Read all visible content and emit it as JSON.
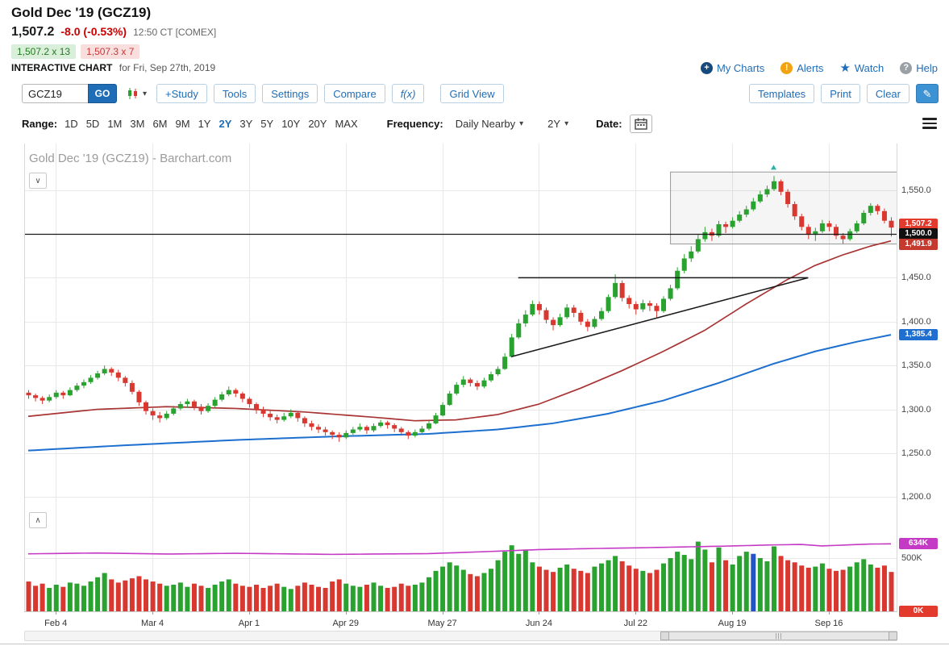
{
  "header": {
    "title": "Gold Dec '19 (GCZ19)",
    "last_price": "1,507.2",
    "change": "-8.0 (-0.53%)",
    "quote_time": "12:50 CT [COMEX]",
    "bid": "1,507.2 x 13",
    "ask": "1,507.3 x 7",
    "chart_label": "INTERACTIVE CHART",
    "chart_date": "for Fri, Sep 27th, 2019",
    "links": {
      "my_charts": "My Charts",
      "alerts": "Alerts",
      "watch": "Watch",
      "help": "Help"
    }
  },
  "toolbar": {
    "symbol_value": "GCZ19",
    "go_label": "GO",
    "buttons_left": [
      "+Study",
      "Tools",
      "Settings",
      "Compare",
      "f(x)",
      "Grid View"
    ],
    "buttons_right": [
      "Templates",
      "Print",
      "Clear"
    ]
  },
  "range_bar": {
    "range_label": "Range:",
    "ranges": [
      "1D",
      "5D",
      "1M",
      "3M",
      "6M",
      "9M",
      "1Y",
      "2Y",
      "3Y",
      "5Y",
      "10Y",
      "20Y",
      "MAX"
    ],
    "active_range": "2Y",
    "frequency_label": "Frequency:",
    "frequency_value": "Daily Nearby",
    "period_value": "2Y",
    "date_label": "Date:"
  },
  "icons": {
    "plus": "+",
    "alert": "!",
    "help": "?",
    "star": "★",
    "caret_down": "▾",
    "collapse_down": "∨",
    "collapse_up": "∧",
    "pencil": "✎",
    "grip": "|||"
  },
  "colors": {
    "up": "#2aa22f",
    "down": "#d93831",
    "ma_fast": "#a83434",
    "ma_slow": "#1c6fce",
    "open_interest": "#c53ac5",
    "drawn": "#1a1a1a",
    "grid": "#e8e8e8",
    "volume_highlight": "#2353c4",
    "marker": "#27b5ab",
    "badge_last": "#e23b2e",
    "badge_hline": "#111111",
    "badge_ma_fast": "#c43a2e",
    "badge_ma_slow": "#1e6fd0",
    "badge_open_interest": "#c53ac5",
    "badge_volume_zero": "#e23b2e",
    "accent": "#1f6db6",
    "change_negative": "#cc0000"
  },
  "chart_data": {
    "type": "candlestick",
    "watermark": "Gold Dec '19 (GCZ19) - Barchart.com",
    "panes": [
      "price_with_moving_averages",
      "volume_with_open_interest"
    ],
    "price_axis": {
      "domain": [
        1192,
        1603
      ],
      "ticks": [
        {
          "label": "1,550.0",
          "value": 1550
        },
        {
          "label": "1,500.0",
          "value": 1500
        },
        {
          "label": "1,450.0",
          "value": 1450
        },
        {
          "label": "1,400.0",
          "value": 1400
        },
        {
          "label": "1,350.0",
          "value": 1350
        },
        {
          "label": "1,300.0",
          "value": 1300
        },
        {
          "label": "1,250.0",
          "value": 1250
        },
        {
          "label": "1,200.0",
          "value": 1200
        }
      ]
    },
    "volume_axis": {
      "tick_label": "500K",
      "tick_value_k": 500
    },
    "x_labels": [
      {
        "label": "Feb 4",
        "i": 4
      },
      {
        "label": "Mar 4",
        "i": 18
      },
      {
        "label": "Apr 1",
        "i": 32
      },
      {
        "label": "Apr 29",
        "i": 46
      },
      {
        "label": "May 27",
        "i": 60
      },
      {
        "label": "Jun 24",
        "i": 74
      },
      {
        "label": "Jul 22",
        "i": 88
      },
      {
        "label": "Aug 19",
        "i": 102
      },
      {
        "label": "Sep 16",
        "i": 116
      }
    ],
    "candles": [
      [
        1319,
        1322,
        1312,
        1316
      ],
      [
        1316,
        1318,
        1309,
        1313
      ],
      [
        1313,
        1315,
        1306,
        1310
      ],
      [
        1310,
        1317,
        1308,
        1314
      ],
      [
        1314,
        1322,
        1312,
        1319
      ],
      [
        1319,
        1321,
        1312,
        1316
      ],
      [
        1316,
        1325,
        1315,
        1322
      ],
      [
        1322,
        1330,
        1320,
        1327
      ],
      [
        1327,
        1334,
        1324,
        1331
      ],
      [
        1331,
        1339,
        1329,
        1336
      ],
      [
        1336,
        1344,
        1334,
        1341
      ],
      [
        1341,
        1350,
        1339,
        1346
      ],
      [
        1346,
        1348,
        1338,
        1342
      ],
      [
        1342,
        1345,
        1332,
        1336
      ],
      [
        1336,
        1338,
        1326,
        1330
      ],
      [
        1330,
        1333,
        1317,
        1320
      ],
      [
        1320,
        1322,
        1304,
        1308
      ],
      [
        1308,
        1310,
        1294,
        1298
      ],
      [
        1298,
        1301,
        1288,
        1293
      ],
      [
        1293,
        1297,
        1285,
        1290
      ],
      [
        1290,
        1298,
        1288,
        1295
      ],
      [
        1295,
        1304,
        1293,
        1301
      ],
      [
        1301,
        1309,
        1299,
        1306
      ],
      [
        1306,
        1312,
        1302,
        1309
      ],
      [
        1309,
        1311,
        1299,
        1303
      ],
      [
        1303,
        1306,
        1294,
        1298
      ],
      [
        1298,
        1307,
        1296,
        1304
      ],
      [
        1304,
        1314,
        1302,
        1311
      ],
      [
        1311,
        1320,
        1309,
        1317
      ],
      [
        1317,
        1326,
        1315,
        1322
      ],
      [
        1322,
        1324,
        1314,
        1318
      ],
      [
        1318,
        1320,
        1308,
        1312
      ],
      [
        1312,
        1314,
        1302,
        1306
      ],
      [
        1306,
        1308,
        1295,
        1299
      ],
      [
        1299,
        1303,
        1291,
        1295
      ],
      [
        1295,
        1298,
        1287,
        1291
      ],
      [
        1291,
        1294,
        1284,
        1288
      ],
      [
        1288,
        1296,
        1286,
        1292
      ],
      [
        1292,
        1300,
        1290,
        1296
      ],
      [
        1296,
        1298,
        1286,
        1290
      ],
      [
        1290,
        1292,
        1280,
        1284
      ],
      [
        1284,
        1287,
        1276,
        1280
      ],
      [
        1280,
        1283,
        1273,
        1277
      ],
      [
        1277,
        1280,
        1270,
        1274
      ],
      [
        1274,
        1276,
        1266,
        1271
      ],
      [
        1271,
        1274,
        1263,
        1268
      ],
      [
        1268,
        1276,
        1266,
        1273
      ],
      [
        1273,
        1280,
        1271,
        1277
      ],
      [
        1277,
        1284,
        1275,
        1280
      ],
      [
        1280,
        1282,
        1272,
        1276
      ],
      [
        1276,
        1284,
        1274,
        1281
      ],
      [
        1281,
        1288,
        1279,
        1285
      ],
      [
        1285,
        1287,
        1278,
        1282
      ],
      [
        1282,
        1284,
        1274,
        1278
      ],
      [
        1278,
        1280,
        1270,
        1274
      ],
      [
        1274,
        1276,
        1266,
        1270
      ],
      [
        1270,
        1277,
        1268,
        1274
      ],
      [
        1274,
        1281,
        1272,
        1278
      ],
      [
        1278,
        1287,
        1276,
        1284
      ],
      [
        1284,
        1296,
        1283,
        1293
      ],
      [
        1293,
        1308,
        1292,
        1305
      ],
      [
        1305,
        1321,
        1304,
        1318
      ],
      [
        1318,
        1331,
        1316,
        1328
      ],
      [
        1328,
        1338,
        1325,
        1334
      ],
      [
        1334,
        1336,
        1326,
        1330
      ],
      [
        1330,
        1333,
        1322,
        1326
      ],
      [
        1326,
        1336,
        1324,
        1333
      ],
      [
        1333,
        1343,
        1331,
        1340
      ],
      [
        1340,
        1349,
        1338,
        1346
      ],
      [
        1346,
        1364,
        1345,
        1360
      ],
      [
        1360,
        1386,
        1359,
        1382
      ],
      [
        1382,
        1403,
        1380,
        1398
      ],
      [
        1398,
        1413,
        1394,
        1408
      ],
      [
        1408,
        1424,
        1406,
        1420
      ],
      [
        1420,
        1423,
        1408,
        1413
      ],
      [
        1413,
        1416,
        1398,
        1402
      ],
      [
        1402,
        1405,
        1390,
        1396
      ],
      [
        1396,
        1409,
        1394,
        1405
      ],
      [
        1405,
        1420,
        1403,
        1416
      ],
      [
        1416,
        1419,
        1405,
        1410
      ],
      [
        1410,
        1413,
        1396,
        1400
      ],
      [
        1400,
        1403,
        1389,
        1394
      ],
      [
        1394,
        1406,
        1392,
        1403
      ],
      [
        1403,
        1416,
        1401,
        1412
      ],
      [
        1412,
        1431,
        1410,
        1428
      ],
      [
        1428,
        1454,
        1426,
        1444
      ],
      [
        1444,
        1447,
        1423,
        1427
      ],
      [
        1427,
        1430,
        1415,
        1420
      ],
      [
        1420,
        1423,
        1408,
        1414
      ],
      [
        1414,
        1425,
        1411,
        1421
      ],
      [
        1421,
        1424,
        1412,
        1418
      ],
      [
        1418,
        1421,
        1405,
        1412
      ],
      [
        1412,
        1429,
        1410,
        1426
      ],
      [
        1426,
        1442,
        1424,
        1438
      ],
      [
        1438,
        1462,
        1436,
        1458
      ],
      [
        1458,
        1477,
        1455,
        1472
      ],
      [
        1472,
        1486,
        1468,
        1480
      ],
      [
        1480,
        1499,
        1478,
        1494
      ],
      [
        1494,
        1508,
        1491,
        1502
      ],
      [
        1502,
        1506,
        1492,
        1498
      ],
      [
        1498,
        1515,
        1496,
        1511
      ],
      [
        1511,
        1514,
        1501,
        1508
      ],
      [
        1508,
        1519,
        1506,
        1515
      ],
      [
        1515,
        1526,
        1513,
        1522
      ],
      [
        1522,
        1532,
        1519,
        1528
      ],
      [
        1528,
        1541,
        1526,
        1537
      ],
      [
        1537,
        1549,
        1535,
        1545
      ],
      [
        1545,
        1555,
        1542,
        1551
      ],
      [
        1551,
        1566,
        1549,
        1560
      ],
      [
        1560,
        1562,
        1544,
        1548
      ],
      [
        1548,
        1551,
        1530,
        1534
      ],
      [
        1534,
        1537,
        1516,
        1520
      ],
      [
        1520,
        1523,
        1504,
        1508
      ],
      [
        1508,
        1511,
        1494,
        1499
      ],
      [
        1499,
        1507,
        1492,
        1503
      ],
      [
        1503,
        1516,
        1501,
        1512
      ],
      [
        1512,
        1515,
        1503,
        1508
      ],
      [
        1508,
        1511,
        1494,
        1498
      ],
      [
        1498,
        1501,
        1489,
        1494
      ],
      [
        1494,
        1506,
        1492,
        1503
      ],
      [
        1503,
        1515,
        1501,
        1512
      ],
      [
        1512,
        1527,
        1510,
        1524
      ],
      [
        1524,
        1535,
        1521,
        1532
      ],
      [
        1532,
        1534,
        1522,
        1526
      ],
      [
        1526,
        1529,
        1512,
        1515
      ],
      [
        1515,
        1519,
        1497,
        1507.2
      ]
    ],
    "volumes_k": [
      280,
      240,
      260,
      220,
      250,
      230,
      270,
      260,
      240,
      280,
      320,
      360,
      300,
      270,
      290,
      310,
      330,
      300,
      280,
      260,
      240,
      250,
      270,
      230,
      260,
      240,
      220,
      250,
      280,
      300,
      260,
      240,
      230,
      250,
      220,
      240,
      260,
      230,
      210,
      240,
      270,
      250,
      230,
      220,
      280,
      300,
      260,
      240,
      230,
      250,
      270,
      240,
      220,
      230,
      260,
      240,
      250,
      270,
      320,
      380,
      420,
      460,
      430,
      390,
      350,
      330,
      360,
      400,
      480,
      560,
      620,
      540,
      580,
      460,
      420,
      390,
      370,
      410,
      440,
      400,
      380,
      360,
      420,
      450,
      480,
      520,
      470,
      430,
      400,
      380,
      360,
      390,
      450,
      500,
      560,
      530,
      490,
      655,
      580,
      460,
      600,
      480,
      440,
      520,
      560,
      540,
      500,
      470,
      610,
      520,
      480,
      460,
      430,
      410,
      420,
      450,
      400,
      380,
      390,
      420,
      460,
      490,
      440,
      410,
      430,
      370
    ],
    "volume_highlight_index": 105,
    "open_interest_anchors_k": [
      [
        0,
        540
      ],
      [
        10,
        548
      ],
      [
        20,
        538
      ],
      [
        30,
        545
      ],
      [
        44,
        535
      ],
      [
        58,
        542
      ],
      [
        66,
        560
      ],
      [
        74,
        580
      ],
      [
        82,
        590
      ],
      [
        88,
        596
      ],
      [
        96,
        606
      ],
      [
        102,
        614
      ],
      [
        108,
        624
      ],
      [
        112,
        628
      ],
      [
        115,
        614
      ],
      [
        118,
        622
      ],
      [
        122,
        632
      ],
      [
        125,
        634
      ]
    ],
    "ma_fast_anchors": [
      [
        0,
        1292
      ],
      [
        10,
        1300
      ],
      [
        20,
        1303
      ],
      [
        30,
        1301
      ],
      [
        40,
        1297
      ],
      [
        50,
        1291
      ],
      [
        56,
        1287
      ],
      [
        62,
        1288
      ],
      [
        68,
        1294
      ],
      [
        74,
        1306
      ],
      [
        80,
        1324
      ],
      [
        86,
        1344
      ],
      [
        92,
        1366
      ],
      [
        98,
        1390
      ],
      [
        104,
        1420
      ],
      [
        110,
        1448
      ],
      [
        114,
        1464
      ],
      [
        118,
        1476
      ],
      [
        122,
        1486
      ],
      [
        125,
        1492
      ]
    ],
    "ma_slow_anchors": [
      [
        0,
        1253
      ],
      [
        14,
        1259
      ],
      [
        30,
        1265
      ],
      [
        44,
        1269
      ],
      [
        58,
        1272
      ],
      [
        68,
        1277
      ],
      [
        76,
        1284
      ],
      [
        84,
        1295
      ],
      [
        92,
        1310
      ],
      [
        100,
        1330
      ],
      [
        108,
        1352
      ],
      [
        114,
        1366
      ],
      [
        120,
        1377
      ],
      [
        125,
        1385
      ]
    ],
    "annotations": {
      "hline_price": 1500,
      "trend_h": {
        "i0": 71,
        "p0": 1450,
        "i1": 113,
        "p1": 1450
      },
      "trend_rise": {
        "i0": 70,
        "p0": 1360,
        "i1": 113,
        "p1": 1450
      },
      "rect": {
        "i0": 93,
        "price_top": 1571,
        "price_bottom": 1489
      },
      "marker": {
        "i": 108,
        "price": 1576
      }
    },
    "badges": {
      "last": {
        "label": "1,507.2",
        "value": 1507.2
      },
      "hline": {
        "label": "1,500.0",
        "value": 1500
      },
      "ma_fast": {
        "label": "1,491.9",
        "value": 1491.9
      },
      "ma_slow": {
        "label": "1,385.4",
        "value": 1385.4
      },
      "open_interest": {
        "label": "634K",
        "value_k": 634
      },
      "volume_zero": {
        "label": "0K",
        "value_k": 0
      }
    }
  }
}
